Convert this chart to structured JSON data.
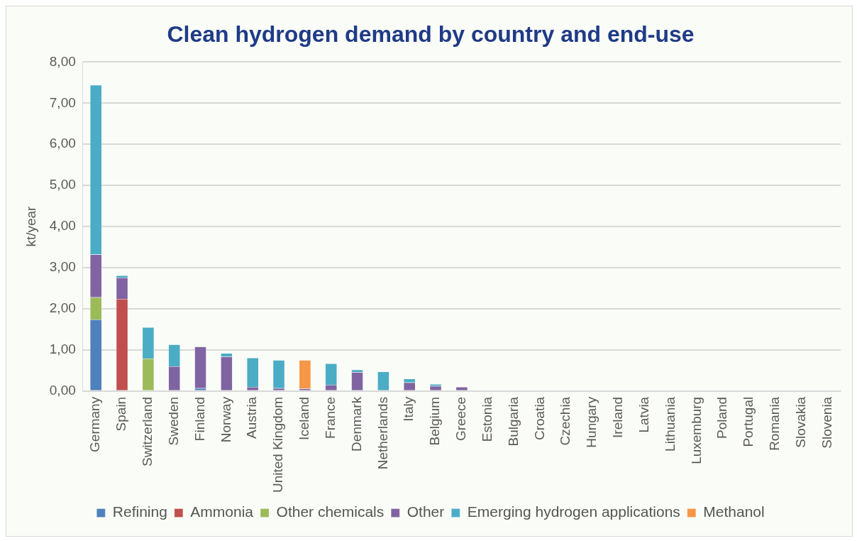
{
  "chart_data": {
    "type": "bar",
    "title": "Clean hydrogen demand by country and end-use",
    "ylabel": "kt/year",
    "categories": [
      "Germany",
      "Spain",
      "Switzerland",
      "Sweden",
      "Finland",
      "Norway",
      "Austria",
      "United Kingdom",
      "Iceland",
      "France",
      "Denmark",
      "Netherlands",
      "Italy",
      "Belgium",
      "Greece",
      "Estonia",
      "Bulgaria",
      "Croatia",
      "Czechia",
      "Hungary",
      "Ireland",
      "Latvia",
      "Lithuania",
      "Luxemburg",
      "Poland",
      "Portugal",
      "Romania",
      "Slovakia",
      "Slovenia"
    ],
    "stacked": true,
    "series": [
      {
        "name": "Refining",
        "color": "#4f81bd",
        "values": [
          1.74,
          0,
          0,
          0,
          0.07,
          0,
          0,
          0,
          0,
          0,
          0,
          0,
          0,
          0,
          0,
          0,
          0,
          0,
          0,
          0,
          0,
          0,
          0,
          0,
          0,
          0,
          0,
          0,
          0
        ]
      },
      {
        "name": "Ammonia",
        "color": "#c0504d",
        "values": [
          0,
          2.24,
          0,
          0,
          0,
          0,
          0,
          0,
          0,
          0,
          0,
          0,
          0,
          0,
          0,
          0,
          0,
          0,
          0,
          0,
          0,
          0,
          0,
          0,
          0,
          0,
          0,
          0,
          0
        ]
      },
      {
        "name": "Other chemicals",
        "color": "#9bbb59",
        "values": [
          0.54,
          0,
          0.79,
          0,
          0,
          0,
          0,
          0,
          0,
          0,
          0,
          0,
          0,
          0,
          0,
          0,
          0,
          0,
          0,
          0,
          0,
          0,
          0,
          0,
          0,
          0,
          0,
          0,
          0
        ]
      },
      {
        "name": "Other",
        "color": "#8064a2",
        "values": [
          1.04,
          0.52,
          0,
          0.6,
          1.01,
          0.84,
          0.1,
          0.07,
          0.06,
          0.15,
          0.46,
          0,
          0.21,
          0.12,
          0.1,
          0,
          0,
          0,
          0,
          0,
          0,
          0,
          0,
          0,
          0,
          0,
          0,
          0,
          0
        ]
      },
      {
        "name": "Emerging hydrogen applications",
        "color": "#4bacc6",
        "values": [
          4.12,
          0.05,
          0.76,
          0.53,
          0,
          0.08,
          0.71,
          0.68,
          0,
          0.52,
          0.06,
          0.47,
          0.09,
          0.05,
          0,
          0,
          0,
          0,
          0,
          0,
          0,
          0,
          0,
          0,
          0,
          0,
          0,
          0,
          0
        ]
      },
      {
        "name": "Methanol",
        "color": "#f79646",
        "values": [
          0,
          0,
          0,
          0,
          0,
          0,
          0,
          0,
          0.69,
          0,
          0,
          0,
          0,
          0,
          0,
          0,
          0,
          0,
          0,
          0,
          0,
          0,
          0,
          0,
          0,
          0,
          0,
          0,
          0
        ]
      }
    ],
    "ylim": [
      0,
      8
    ],
    "yticks": [
      {
        "value": 0,
        "label": "0,00"
      },
      {
        "value": 1,
        "label": "1,00"
      },
      {
        "value": 2,
        "label": "2,00"
      },
      {
        "value": 3,
        "label": "3,00"
      },
      {
        "value": 4,
        "label": "4,00"
      },
      {
        "value": 5,
        "label": "5,00"
      },
      {
        "value": 6,
        "label": "6,00"
      },
      {
        "value": 7,
        "label": "7,00"
      },
      {
        "value": 8,
        "label": "8,00"
      }
    ],
    "grid": "y",
    "legend": "bottom"
  }
}
